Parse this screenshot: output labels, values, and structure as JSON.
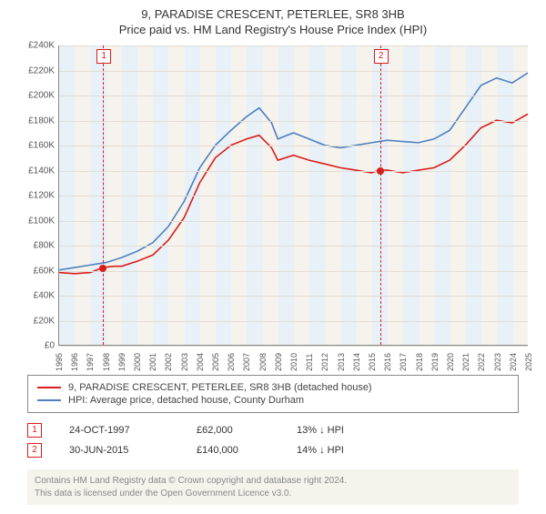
{
  "titles": {
    "line1": "9, PARADISE CRESCENT, PETERLEE, SR8 3HB",
    "line2": "Price paid vs. HM Land Registry's House Price Index (HPI)"
  },
  "chart": {
    "type": "line",
    "background_color": "#f6f3ed",
    "band_color": "#e8f1f8",
    "grid_color": "#e2ddd4",
    "axis_color": "#888888",
    "x": {
      "min": 1995,
      "max": 2025,
      "ticks": [
        1995,
        1996,
        1997,
        1998,
        1999,
        2000,
        2001,
        2002,
        2003,
        2004,
        2005,
        2006,
        2007,
        2008,
        2009,
        2010,
        2011,
        2012,
        2013,
        2014,
        2015,
        2016,
        2017,
        2018,
        2019,
        2020,
        2021,
        2022,
        2023,
        2024,
        2025
      ],
      "bands": [
        {
          "from": 1995,
          "to": 1996
        },
        {
          "from": 1997,
          "to": 1998
        },
        {
          "from": 1999,
          "to": 2000
        },
        {
          "from": 2001,
          "to": 2002
        },
        {
          "from": 2003,
          "to": 2004
        },
        {
          "from": 2005,
          "to": 2006
        },
        {
          "from": 2007,
          "to": 2008
        },
        {
          "from": 2009,
          "to": 2010
        },
        {
          "from": 2011,
          "to": 2012
        },
        {
          "from": 2013,
          "to": 2014
        },
        {
          "from": 2015,
          "to": 2016
        },
        {
          "from": 2017,
          "to": 2018
        },
        {
          "from": 2019,
          "to": 2020
        },
        {
          "from": 2021,
          "to": 2022
        },
        {
          "from": 2023,
          "to": 2024
        }
      ],
      "label_fontsize": 9
    },
    "y": {
      "min": 0,
      "max": 240000,
      "ticks": [
        0,
        20000,
        40000,
        60000,
        80000,
        100000,
        120000,
        140000,
        160000,
        180000,
        200000,
        220000,
        240000
      ],
      "tick_labels": [
        "£0",
        "£20K",
        "£40K",
        "£60K",
        "£80K",
        "£100K",
        "£120K",
        "£140K",
        "£160K",
        "£180K",
        "£200K",
        "£220K",
        "£240K"
      ],
      "label_fontsize": 10
    },
    "series": [
      {
        "id": "price_paid",
        "label": "9, PARADISE CRESCENT, PETERLEE, SR8 3HB (detached house)",
        "color": "#d91d1a",
        "line_width": 1.6,
        "points": [
          [
            1995,
            58000
          ],
          [
            1996,
            57000
          ],
          [
            1997,
            58000
          ],
          [
            1997.8,
            62000
          ],
          [
            1998.5,
            63000
          ],
          [
            1999,
            63000
          ],
          [
            2000,
            67000
          ],
          [
            2001,
            72000
          ],
          [
            2002,
            84000
          ],
          [
            2003,
            102000
          ],
          [
            2004,
            130000
          ],
          [
            2005,
            150000
          ],
          [
            2006,
            160000
          ],
          [
            2007,
            165000
          ],
          [
            2007.8,
            168000
          ],
          [
            2008.6,
            158000
          ],
          [
            2009,
            148000
          ],
          [
            2010,
            152000
          ],
          [
            2011,
            148000
          ],
          [
            2012,
            145000
          ],
          [
            2013,
            142000
          ],
          [
            2014,
            140000
          ],
          [
            2015,
            138000
          ],
          [
            2015.5,
            140000
          ],
          [
            2016,
            140000
          ],
          [
            2017,
            138000
          ],
          [
            2018,
            140000
          ],
          [
            2019,
            142000
          ],
          [
            2020,
            148000
          ],
          [
            2021,
            160000
          ],
          [
            2022,
            174000
          ],
          [
            2023,
            180000
          ],
          [
            2024,
            178000
          ],
          [
            2025,
            185000
          ]
        ]
      },
      {
        "id": "hpi",
        "label": "HPI: Average price, detached house, County Durham",
        "color": "#4f7fbf",
        "line_width": 1.6,
        "points": [
          [
            1995,
            60000
          ],
          [
            1996,
            62000
          ],
          [
            1997,
            64000
          ],
          [
            1998,
            66000
          ],
          [
            1999,
            70000
          ],
          [
            2000,
            75000
          ],
          [
            2001,
            82000
          ],
          [
            2002,
            95000
          ],
          [
            2003,
            115000
          ],
          [
            2004,
            142000
          ],
          [
            2005,
            160000
          ],
          [
            2006,
            172000
          ],
          [
            2007,
            183000
          ],
          [
            2007.8,
            190000
          ],
          [
            2008.6,
            178000
          ],
          [
            2009,
            165000
          ],
          [
            2010,
            170000
          ],
          [
            2011,
            165000
          ],
          [
            2012,
            160000
          ],
          [
            2013,
            158000
          ],
          [
            2014,
            160000
          ],
          [
            2015,
            162000
          ],
          [
            2016,
            164000
          ],
          [
            2017,
            163000
          ],
          [
            2018,
            162000
          ],
          [
            2019,
            165000
          ],
          [
            2020,
            172000
          ],
          [
            2021,
            190000
          ],
          [
            2022,
            208000
          ],
          [
            2023,
            214000
          ],
          [
            2024,
            210000
          ],
          [
            2025,
            218000
          ]
        ]
      }
    ],
    "markers": [
      {
        "x": 1997.8,
        "y": 62000,
        "color": "#d91d1a"
      },
      {
        "x": 2015.5,
        "y": 140000,
        "color": "#d91d1a"
      }
    ],
    "vlines": [
      {
        "num": "1",
        "x": 1997.8,
        "color": "#d91d1a"
      },
      {
        "num": "2",
        "x": 2015.5,
        "color": "#d91d1a"
      }
    ]
  },
  "legend": {
    "items": [
      {
        "color": "#d91d1a",
        "label": "9, PARADISE CRESCENT, PETERLEE, SR8 3HB (detached house)"
      },
      {
        "color": "#4f7fbf",
        "label": "HPI: Average price, detached house, County Durham"
      }
    ]
  },
  "sales": [
    {
      "num": "1",
      "date": "24-OCT-1997",
      "price": "£62,000",
      "hpi": "13% ↓ HPI",
      "color": "#d91d1a"
    },
    {
      "num": "2",
      "date": "30-JUN-2015",
      "price": "£140,000",
      "hpi": "14% ↓ HPI",
      "color": "#d91d1a"
    }
  ],
  "footer": {
    "line1": "Contains HM Land Registry data © Crown copyright and database right 2024.",
    "line2": "This data is licensed under the Open Government Licence v3.0."
  }
}
